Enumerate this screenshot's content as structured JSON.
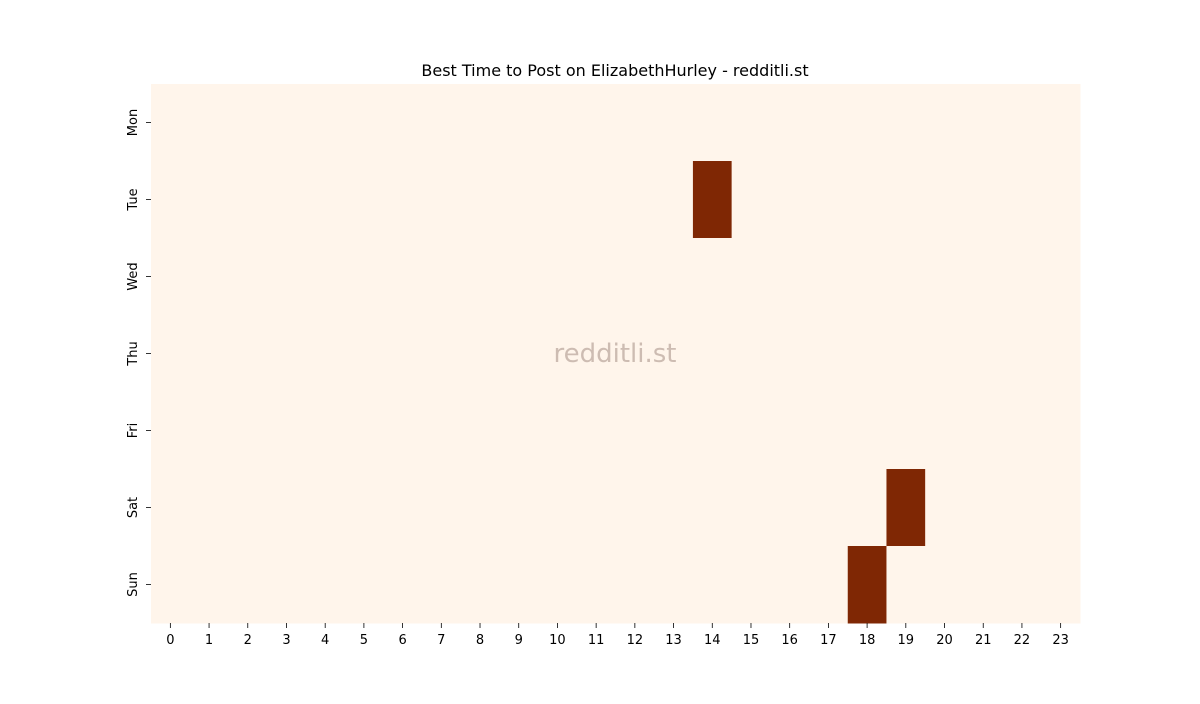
{
  "chart_data": {
    "type": "heatmap",
    "title": "Best Time to Post on ElizabethHurley - redditli.st",
    "watermark": "redditli.st",
    "xlabel": "",
    "ylabel": "",
    "x_categories": [
      "0",
      "1",
      "2",
      "3",
      "4",
      "5",
      "6",
      "7",
      "8",
      "9",
      "10",
      "11",
      "12",
      "13",
      "14",
      "15",
      "16",
      "17",
      "18",
      "19",
      "20",
      "21",
      "22",
      "23"
    ],
    "y_categories": [
      "Mon",
      "Tue",
      "Wed",
      "Thu",
      "Fri",
      "Sat",
      "Sun"
    ],
    "values": [
      [
        0,
        0,
        0,
        0,
        0,
        0,
        0,
        0,
        0,
        0,
        0,
        0,
        0,
        0,
        0,
        0,
        0,
        0,
        0,
        0,
        0,
        0,
        0,
        0
      ],
      [
        0,
        0,
        0,
        0,
        0,
        0,
        0,
        0,
        0,
        0,
        0,
        0,
        0,
        0,
        1,
        0,
        0,
        0,
        0,
        0,
        0,
        0,
        0,
        0
      ],
      [
        0,
        0,
        0,
        0,
        0,
        0,
        0,
        0,
        0,
        0,
        0,
        0,
        0,
        0,
        0,
        0,
        0,
        0,
        0,
        0,
        0,
        0,
        0,
        0
      ],
      [
        0,
        0,
        0,
        0,
        0,
        0,
        0,
        0,
        0,
        0,
        0,
        0,
        0,
        0,
        0,
        0,
        0,
        0,
        0,
        0,
        0,
        0,
        0,
        0
      ],
      [
        0,
        0,
        0,
        0,
        0,
        0,
        0,
        0,
        0,
        0,
        0,
        0,
        0,
        0,
        0,
        0,
        0,
        0,
        0,
        0,
        0,
        0,
        0,
        0
      ],
      [
        0,
        0,
        0,
        0,
        0,
        0,
        0,
        0,
        0,
        0,
        0,
        0,
        0,
        0,
        0,
        0,
        0,
        0,
        0,
        1,
        0,
        0,
        0,
        0
      ],
      [
        0,
        0,
        0,
        0,
        0,
        0,
        0,
        0,
        0,
        0,
        0,
        0,
        0,
        0,
        0,
        0,
        0,
        0,
        1,
        0,
        0,
        0,
        0,
        0
      ]
    ],
    "value_range": [
      0,
      1
    ],
    "colors": {
      "low": "#fff5eb",
      "high": "#7f2704",
      "watermark": "#c8b6ac",
      "text": "#000000"
    },
    "grid": false,
    "colorbar": false
  }
}
